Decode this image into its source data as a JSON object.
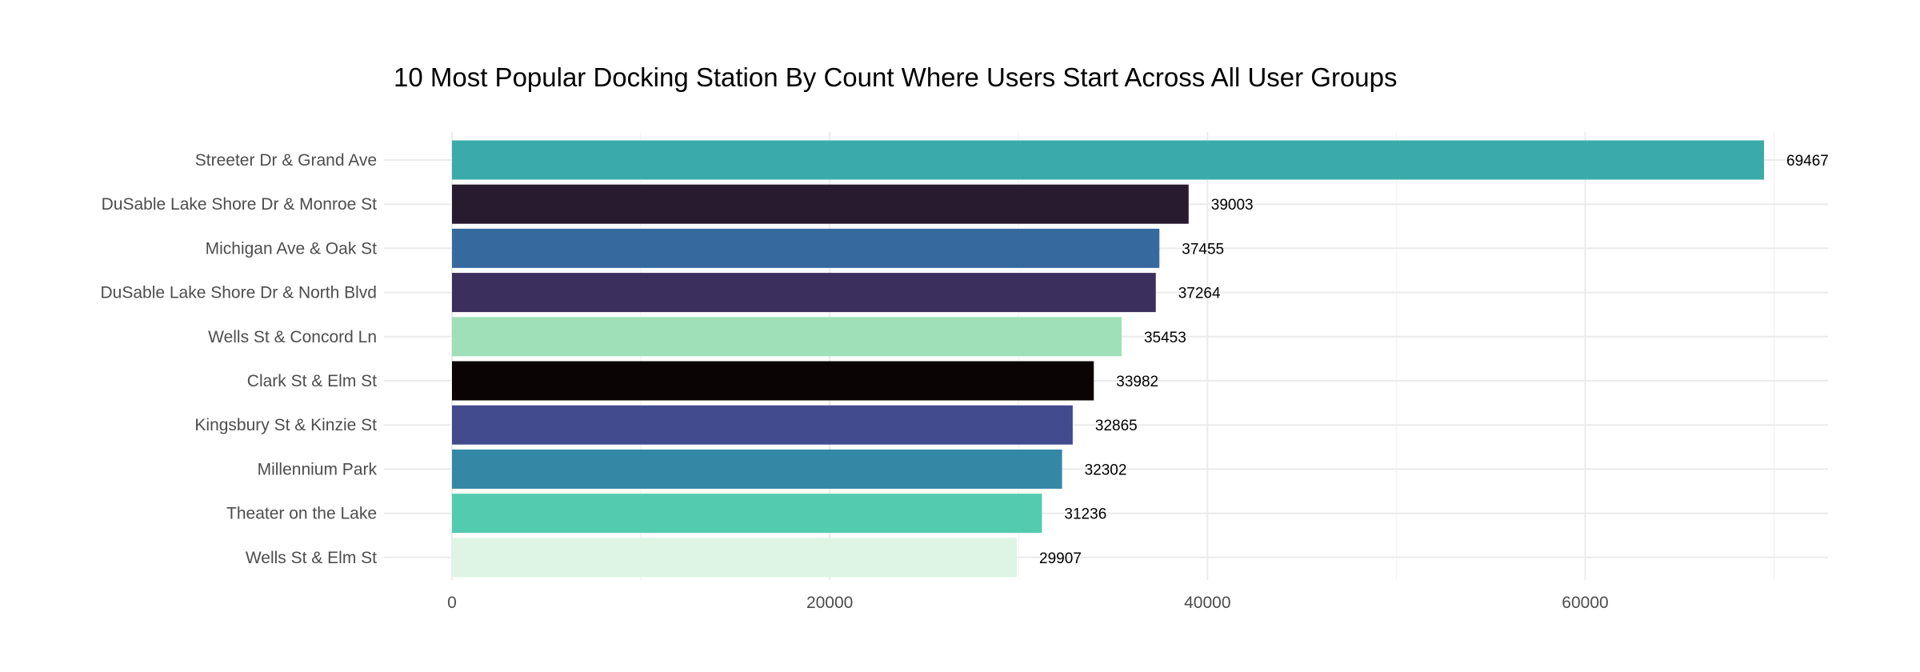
{
  "chart_data": {
    "type": "bar",
    "orientation": "horizontal",
    "title": "10 Most Popular Docking Station By Count Where Users Start Across All User Groups",
    "xlabel": "",
    "ylabel": "",
    "categories": [
      "Streeter Dr & Grand Ave",
      "DuSable Lake Shore Dr & Monroe St",
      "Michigan Ave & Oak St",
      "DuSable Lake Shore Dr & North Blvd",
      "Wells St & Concord Ln",
      "Clark St & Elm St",
      "Kingsbury St & Kinzie St",
      "Millennium Park",
      "Theater on the Lake",
      "Wells St & Elm St"
    ],
    "values": [
      69467,
      39003,
      37455,
      37264,
      35453,
      33982,
      32865,
      32302,
      31236,
      29907
    ],
    "colors": [
      "#3aabaa",
      "#281a2f",
      "#366a9f",
      "#3b2f5e",
      "#a0e0b9",
      "#0b0405",
      "#414b8e",
      "#3587a6",
      "#53cbaf",
      "#def5e5"
    ],
    "xlim": [
      0,
      73000
    ],
    "x_ticks": [
      "0",
      "20000",
      "40000",
      "60000"
    ],
    "tick_values": [
      0,
      20000,
      40000,
      60000
    ],
    "grid": true,
    "legend": "none"
  }
}
